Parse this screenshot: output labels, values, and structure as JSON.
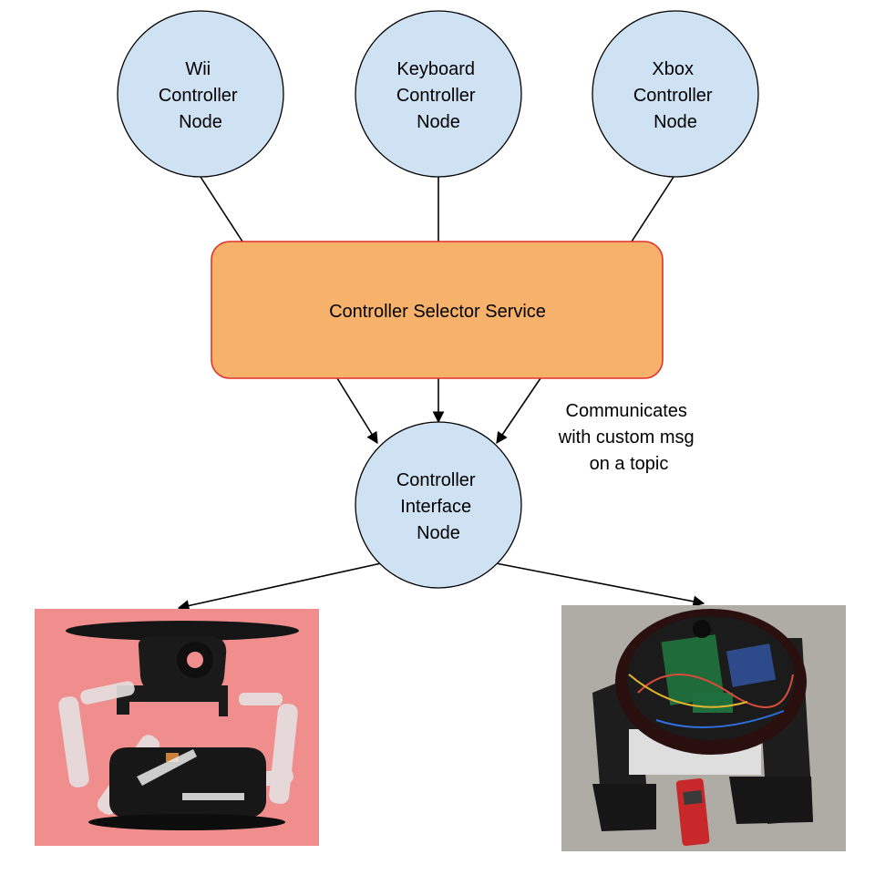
{
  "nodes": {
    "wii": {
      "lines": [
        "Wii",
        "Controller",
        "Node"
      ]
    },
    "keyboard": {
      "lines": [
        "Keyboard",
        "Controller",
        "Node"
      ]
    },
    "xbox": {
      "lines": [
        "Xbox",
        "Controller",
        "Node"
      ]
    },
    "interface": {
      "lines": [
        "Controller",
        "Interface",
        "Node"
      ]
    }
  },
  "service": {
    "label": "Controller Selector Service"
  },
  "annotation": {
    "lines": [
      "Communicates",
      "with custom msg",
      "on a topic"
    ]
  },
  "colors": {
    "node_fill": "#cfe2f3",
    "service_fill": "#f6b26b",
    "service_border": "#e0322f",
    "left_photo_bg": "#ef8e8c",
    "right_photo_bg": "#b5b1ab"
  },
  "images": {
    "left": "rendered-robot-with-arms",
    "right": "tracked-robot-with-electronics"
  }
}
